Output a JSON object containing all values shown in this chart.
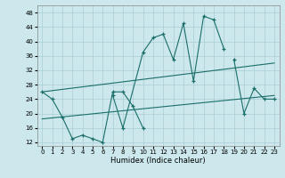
{
  "xlabel": "Humidex (Indice chaleur)",
  "xlim": [
    -0.5,
    23.5
  ],
  "ylim": [
    11,
    50
  ],
  "yticks": [
    12,
    16,
    20,
    24,
    28,
    32,
    36,
    40,
    44,
    48
  ],
  "xticks": [
    0,
    1,
    2,
    3,
    4,
    5,
    6,
    7,
    8,
    9,
    10,
    11,
    12,
    13,
    14,
    15,
    16,
    17,
    18,
    19,
    20,
    21,
    22,
    23
  ],
  "background_color": "#cce8ec",
  "line_color": "#1a6e6a",
  "series1_x": [
    0,
    1,
    2,
    3,
    4,
    5,
    6,
    7,
    8,
    9,
    10
  ],
  "series1_y": [
    26,
    24,
    19,
    13,
    14,
    13,
    12,
    26,
    26,
    22,
    16
  ],
  "series2_x": [
    7,
    8,
    10,
    11,
    12,
    13,
    14,
    15,
    16,
    17,
    18
  ],
  "series2_y": [
    25,
    16,
    37,
    41,
    42,
    35,
    45,
    29,
    47,
    46,
    38
  ],
  "series3_x": [
    19,
    20,
    21,
    22,
    23
  ],
  "series3_y": [
    35,
    20,
    27,
    24,
    24
  ],
  "trend1_x": [
    0,
    23
  ],
  "trend1_y": [
    26.0,
    34.0
  ],
  "trend2_x": [
    0,
    23
  ],
  "trend2_y": [
    18.5,
    25.0
  ],
  "grid_color": "#aacdd4",
  "tick_fontsize": 5,
  "xlabel_fontsize": 6
}
